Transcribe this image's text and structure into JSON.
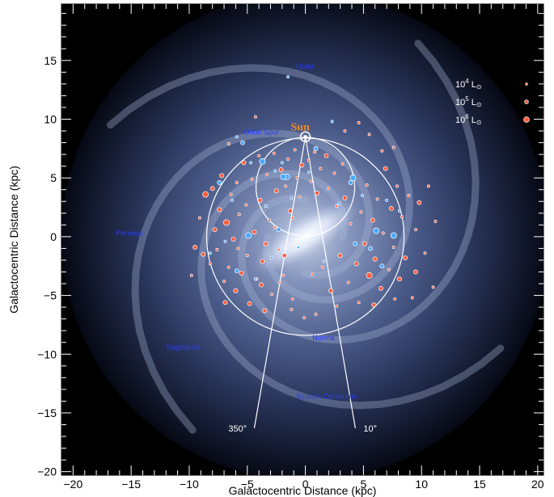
{
  "chart_data": {
    "type": "scatter",
    "title": "",
    "xlabel": "Galactocentric Distance (kpc)",
    "ylabel": "Galactocentric Distance (kpc)",
    "xlim": [
      -21,
      20.5
    ],
    "ylim": [
      -20.3,
      19.8
    ],
    "xticks": [
      -20,
      -15,
      -10,
      -5,
      0,
      5,
      10,
      15,
      20
    ],
    "yticks": [
      -20,
      -15,
      -10,
      -5,
      0,
      5,
      10,
      15
    ],
    "xtick_labels": [
      "−20",
      "−15",
      "−10",
      "−5",
      "0",
      "5",
      "10",
      "15",
      "20"
    ],
    "ytick_labels": [
      "−20",
      "−15",
      "−10",
      "−5",
      "0",
      "5",
      "10",
      "15"
    ],
    "sun": {
      "label": "Sun",
      "x": 0,
      "y": 8.5
    },
    "circles": [
      {
        "center": [
          0,
          4.25
        ],
        "radius": 4.25
      },
      {
        "center": [
          0,
          0
        ],
        "radius": 8.5
      }
    ],
    "longitude_lines": [
      {
        "label": "350°",
        "end": [
          -4.4,
          -16.3
        ]
      },
      {
        "label": "10°",
        "end": [
          4.3,
          -16.3
        ]
      }
    ],
    "arm_labels": [
      {
        "text": "Outer",
        "x": -0.8,
        "y": 14.3
      },
      {
        "text": "Orion Spur",
        "x": -5.3,
        "y": 8.7
      },
      {
        "text": "Perseus",
        "x": -16.3,
        "y": 0.1
      },
      {
        "text": "Sagittarius",
        "x": -12.0,
        "y": -9.6
      },
      {
        "text": "Norma",
        "x": 0.6,
        "y": -8.8
      },
      {
        "text": "Scutum-Centaurus",
        "x": -0.8,
        "y": -13.8
      }
    ],
    "legend": {
      "placement": "top-right",
      "entries": [
        {
          "base": "10",
          "exp": "4",
          "unit": "L",
          "size": "small"
        },
        {
          "base": "10",
          "exp": "5",
          "unit": "L",
          "size": "medium"
        },
        {
          "base": "10",
          "exp": "6",
          "unit": "L",
          "size": "large"
        }
      ]
    },
    "series": [
      {
        "color": "#ff5a3a",
        "points": [
          [
            -9.8,
            -3.3,
            1
          ],
          [
            -9.5,
            -0.9,
            2
          ],
          [
            -9.1,
            1.6,
            1
          ],
          [
            -8.8,
            -1.5,
            2
          ],
          [
            -8.6,
            3.6,
            3
          ],
          [
            -8.2,
            -2.3,
            1
          ],
          [
            -8.0,
            4.1,
            2
          ],
          [
            -7.8,
            0.6,
            2
          ],
          [
            -7.6,
            -1.1,
            1
          ],
          [
            -7.4,
            2.3,
            2
          ],
          [
            -7.2,
            5.2,
            2
          ],
          [
            -7.0,
            -3.8,
            1
          ],
          [
            -6.8,
            1.2,
            3
          ],
          [
            -6.6,
            -2.6,
            1
          ],
          [
            -6.4,
            3.6,
            1
          ],
          [
            -6.2,
            -0.2,
            2
          ],
          [
            -6.0,
            -4.6,
            2
          ],
          [
            -5.9,
            4.6,
            1
          ],
          [
            -5.7,
            1.9,
            1
          ],
          [
            -5.5,
            -3.1,
            2
          ],
          [
            -5.3,
            6.3,
            2
          ],
          [
            -5.1,
            2.7,
            1
          ],
          [
            -5.0,
            -1.6,
            1
          ],
          [
            -4.8,
            -5.7,
            2
          ],
          [
            -4.6,
            4.9,
            1
          ],
          [
            -4.4,
            0.4,
            2
          ],
          [
            -4.2,
            -3.6,
            1
          ],
          [
            -4.0,
            6.9,
            1
          ],
          [
            -3.9,
            3.1,
            2
          ],
          [
            -3.7,
            -2.1,
            2
          ],
          [
            -3.5,
            -6.3,
            2
          ],
          [
            -3.3,
            5.3,
            1
          ],
          [
            -3.1,
            1.4,
            1
          ],
          [
            -2.9,
            -4.9,
            1
          ],
          [
            -2.7,
            7.1,
            1
          ],
          [
            -2.5,
            3.9,
            2
          ],
          [
            -2.3,
            -1.1,
            1
          ],
          [
            -2.1,
            5.7,
            2
          ],
          [
            -1.9,
            -3.3,
            1
          ],
          [
            -1.7,
            4.3,
            1
          ],
          [
            -1.5,
            6.6,
            1
          ],
          [
            -1.3,
            2.2,
            2
          ],
          [
            -1.1,
            -5.3,
            1
          ],
          [
            -0.9,
            7.4,
            1
          ],
          [
            -0.7,
            5.0,
            1
          ],
          [
            -0.5,
            3.4,
            1
          ],
          [
            -0.3,
            6.1,
            2
          ],
          [
            0.3,
            6.5,
            1
          ],
          [
            0.5,
            4.7,
            1
          ],
          [
            0.8,
            7.2,
            1
          ],
          [
            1.0,
            3.7,
            2
          ],
          [
            1.3,
            5.8,
            1
          ],
          [
            1.5,
            -2.6,
            1
          ],
          [
            1.8,
            6.9,
            2
          ],
          [
            2.0,
            4.1,
            1
          ],
          [
            2.2,
            -4.6,
            2
          ],
          [
            2.5,
            5.4,
            1
          ],
          [
            2.7,
            2.6,
            1
          ],
          [
            3.0,
            -1.6,
            2
          ],
          [
            3.2,
            6.2,
            1
          ],
          [
            3.4,
            3.3,
            2
          ],
          [
            3.7,
            -3.9,
            1
          ],
          [
            3.9,
            1.1,
            1
          ],
          [
            4.1,
            5.1,
            2
          ],
          [
            4.4,
            -2.3,
            2
          ],
          [
            4.6,
            -5.6,
            1
          ],
          [
            4.8,
            2.1,
            1
          ],
          [
            5.1,
            -0.6,
            2
          ],
          [
            5.3,
            4.4,
            1
          ],
          [
            5.5,
            -3.3,
            3
          ],
          [
            5.8,
            1.4,
            2
          ],
          [
            6.0,
            -1.9,
            2
          ],
          [
            6.2,
            3.2,
            1
          ],
          [
            6.5,
            -4.4,
            2
          ],
          [
            6.7,
            0.3,
            1
          ],
          [
            6.9,
            5.8,
            2
          ],
          [
            7.2,
            -2.8,
            1
          ],
          [
            7.4,
            2.4,
            2
          ],
          [
            7.6,
            -0.9,
            1
          ],
          [
            7.9,
            4.3,
            1
          ],
          [
            8.1,
            -3.6,
            2
          ],
          [
            8.3,
            1.7,
            1
          ],
          [
            8.6,
            -1.8,
            2
          ],
          [
            8.9,
            3.5,
            1
          ],
          [
            9.2,
            -5.2,
            1
          ],
          [
            9.5,
            0.6,
            1
          ],
          [
            9.8,
            2.9,
            2
          ],
          [
            10.3,
            -1.4,
            1
          ],
          [
            10.6,
            4.3,
            1
          ],
          [
            11.0,
            -4.3,
            1
          ],
          [
            11.2,
            1.3,
            1
          ],
          [
            -3.4,
            -0.6,
            2
          ],
          [
            -2.6,
            0.8,
            1
          ],
          [
            -1.8,
            -1.6,
            2
          ],
          [
            -2.2,
            -3.9,
            1
          ],
          [
            -3.8,
            -4.1,
            2
          ],
          [
            -5.8,
            -1.0,
            1
          ],
          [
            -6.9,
            -5.6,
            2
          ],
          [
            -1.1,
            1.6,
            1
          ],
          [
            0.6,
            -3.2,
            1
          ],
          [
            2.7,
            -5.9,
            1
          ],
          [
            5.9,
            -5.8,
            2
          ],
          [
            7.7,
            -5.3,
            1
          ],
          [
            9.5,
            -3.0,
            2
          ],
          [
            6.6,
            7.3,
            1
          ],
          [
            5.5,
            8.7,
            1
          ],
          [
            4.6,
            9.7,
            1
          ],
          [
            -4.3,
            10.2,
            1
          ],
          [
            3.4,
            9.0,
            1
          ],
          [
            -6.6,
            7.9,
            1
          ],
          [
            7.6,
            7.6,
            1
          ],
          [
            -0.1,
            -6.9,
            1
          ],
          [
            -1.2,
            -6.2,
            1
          ],
          [
            0.9,
            -6.6,
            1
          ]
        ]
      },
      {
        "color": "#4aa8ff",
        "points": [
          [
            -8.2,
            -1.4,
            1
          ],
          [
            -7.4,
            4.6,
            2
          ],
          [
            -6.9,
            -0.4,
            1
          ],
          [
            -6.3,
            3.1,
            1
          ],
          [
            -5.9,
            -2.9,
            2
          ],
          [
            -5.4,
            8.0,
            2
          ],
          [
            -4.9,
            0.1,
            3
          ],
          [
            -4.7,
            6.3,
            1
          ],
          [
            -4.3,
            -3.6,
            1
          ],
          [
            -3.7,
            6.4,
            3
          ],
          [
            -3.4,
            2.6,
            1
          ],
          [
            -2.9,
            -1.8,
            1
          ],
          [
            -2.6,
            5.6,
            1
          ],
          [
            -2.3,
            0.6,
            2
          ],
          [
            -2.0,
            6.3,
            1
          ],
          [
            -1.6,
            5.1,
            3
          ],
          [
            -1.2,
            3.3,
            1
          ],
          [
            -0.6,
            -0.9,
            1
          ],
          [
            0.3,
            5.5,
            1
          ],
          [
            0.9,
            7.5,
            2
          ],
          [
            1.6,
            -2.1,
            1
          ],
          [
            2.3,
            9.8,
            1
          ],
          [
            2.9,
            2.8,
            1
          ],
          [
            3.9,
            4.6,
            2
          ],
          [
            4.3,
            -0.6,
            2
          ],
          [
            4.9,
            3.5,
            1
          ],
          [
            5.6,
            -1.0,
            2
          ],
          [
            6.1,
            0.5,
            3
          ],
          [
            6.6,
            -2.5,
            2
          ],
          [
            7.0,
            3.1,
            1
          ],
          [
            7.6,
            0.1,
            3
          ],
          [
            -1.5,
            13.6,
            1
          ],
          [
            -5.9,
            8.5,
            1
          ],
          [
            8.1,
            2.2,
            1
          ],
          [
            4.1,
            5.0,
            3
          ],
          [
            -1.9,
            5.1,
            3
          ]
        ]
      }
    ]
  }
}
